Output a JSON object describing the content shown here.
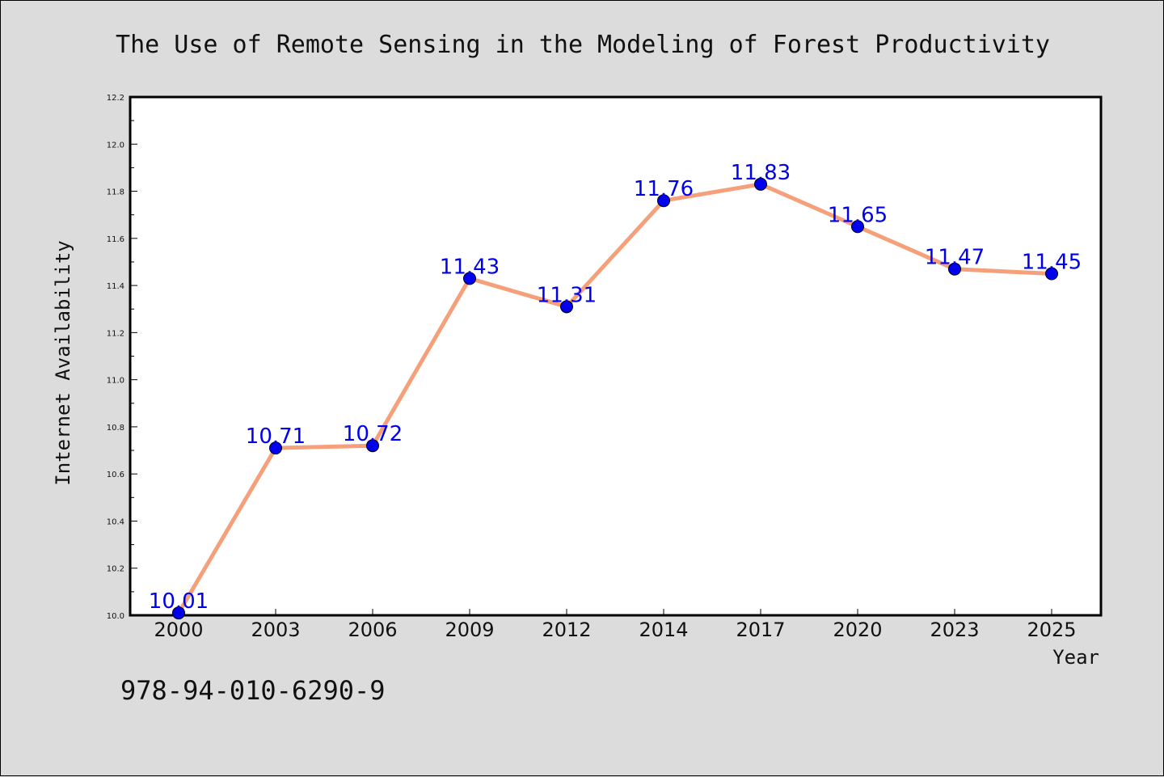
{
  "chart_data": {
    "type": "line",
    "title": "The Use of Remote Sensing in the Modeling of Forest Productivity",
    "xlabel": "Year",
    "ylabel": "Internet Availability",
    "categories": [
      "2000",
      "2003",
      "2006",
      "2009",
      "2012",
      "2014",
      "2017",
      "2020",
      "2023",
      "2025"
    ],
    "values": [
      10.01,
      10.71,
      10.72,
      11.43,
      11.31,
      11.76,
      11.83,
      11.65,
      11.47,
      11.45
    ],
    "data_labels": [
      "10.01",
      "10.71",
      "10.72",
      "11.43",
      "11.31",
      "11.76",
      "11.83",
      "11.65",
      "11.47",
      "11.45"
    ],
    "ylim": [
      10.0,
      12.2
    ],
    "yticks": [
      "10.0",
      "10.2",
      "10.4",
      "10.6",
      "10.8",
      "11.0",
      "11.2",
      "11.4",
      "11.6",
      "11.8",
      "12.0",
      "12.2"
    ],
    "ytick_values": [
      10.0,
      10.2,
      10.4,
      10.6,
      10.8,
      11.0,
      11.2,
      11.4,
      11.6,
      11.8,
      12.0,
      12.2
    ],
    "grid": false,
    "line_color": "#f5a07a",
    "marker_color": "#0000ee",
    "label_color": "#0000ee"
  },
  "footer": {
    "isbn": "978-94-010-6290-9"
  },
  "colors": {
    "background": "#dcdcdc",
    "plot_background": "#ffffff"
  }
}
